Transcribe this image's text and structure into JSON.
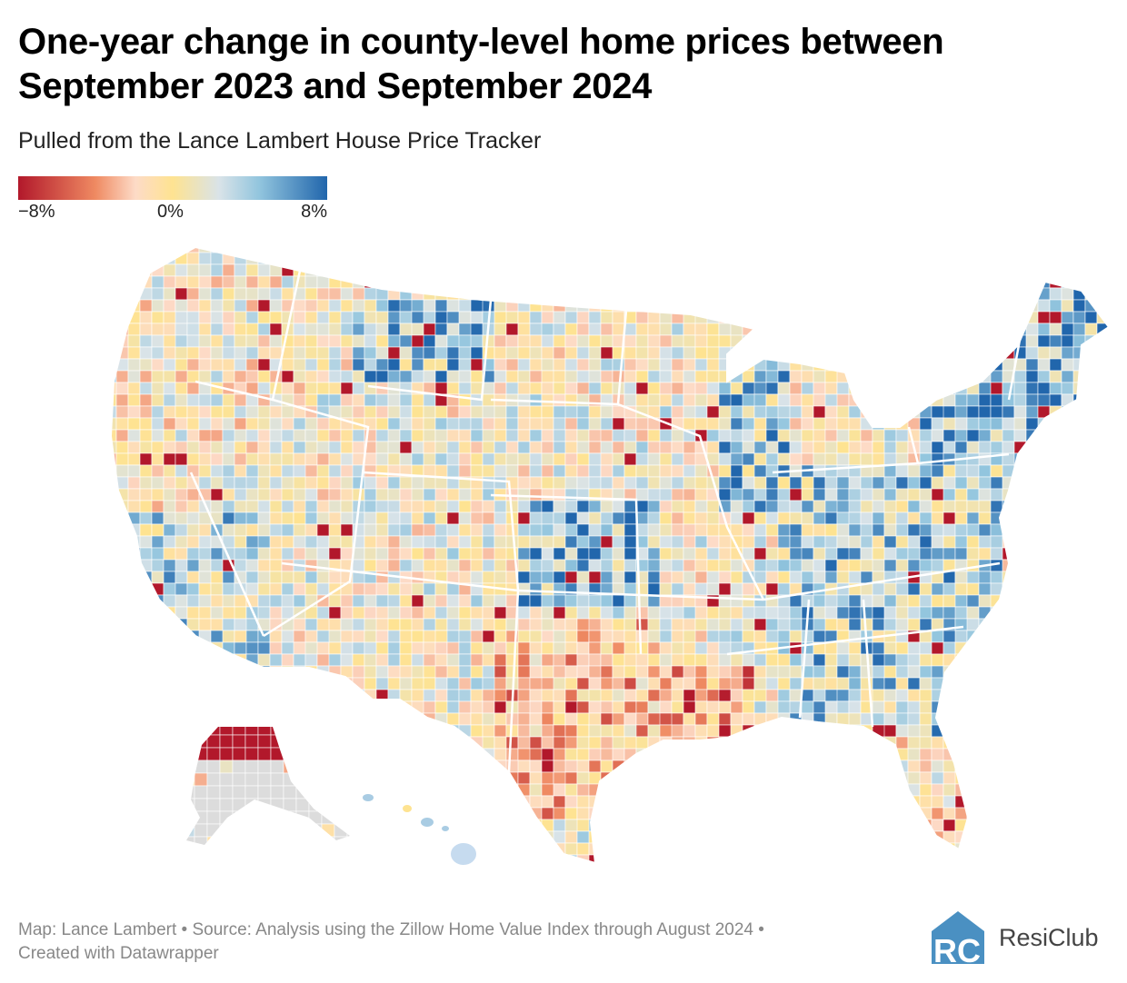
{
  "title": "One-year change in county-level home prices between September 2023 and September 2024",
  "subtitle": "Pulled from the Lance Lambert House Price Tracker",
  "legend": {
    "min_label": "−8%",
    "mid_label": "0%",
    "max_label": "8%",
    "colors": [
      "#b2182b",
      "#ef8a62",
      "#fddbc7",
      "#fee391",
      "#d9e3e8",
      "#92c5de",
      "#2166ac"
    ],
    "no_data_color": "#dcdcdc"
  },
  "footer": {
    "line1": "Map: Lance Lambert • Source: Analysis using the Zillow Home Value Index through August 2024 •",
    "line2": "Created with Datawrapper"
  },
  "brand": {
    "name": "ResiClub",
    "logo_letters": "RC",
    "color": "#4a90c2"
  }
}
